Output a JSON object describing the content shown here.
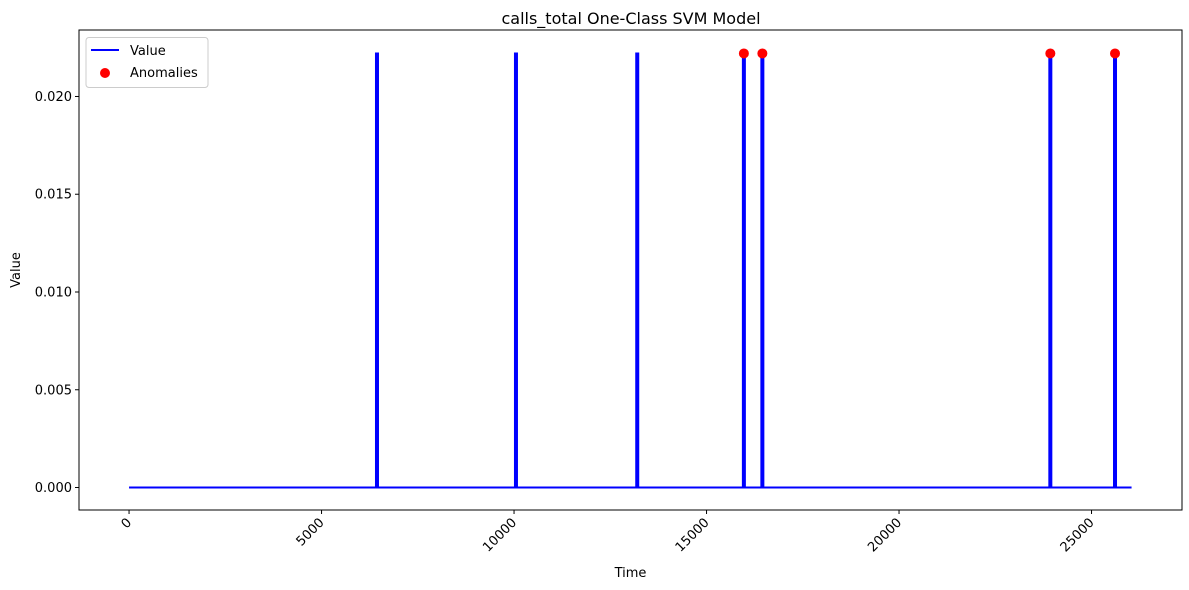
{
  "chart_data": {
    "type": "line",
    "title": "calls_total One-Class SVM Model",
    "xlabel": "Time",
    "ylabel": "Value",
    "xlim": [
      -1300,
      27350
    ],
    "ylim": [
      -0.00115,
      0.0234
    ],
    "xticks": [
      0,
      5000,
      10000,
      15000,
      20000,
      25000
    ],
    "xtick_labels": [
      "0",
      "5000",
      "10000",
      "15000",
      "20000",
      "25000"
    ],
    "xtick_rotation": 45,
    "yticks": [
      0.0,
      0.005,
      0.01,
      0.015,
      0.02
    ],
    "ytick_labels": [
      "0.000",
      "0.005",
      "0.010",
      "0.015",
      "0.020"
    ],
    "grid": false,
    "legend_position": "upper-left",
    "series": [
      {
        "name": "Value",
        "kind": "line",
        "color": "#0000ff",
        "x_range": [
          0,
          26040
        ],
        "baseline": 0.0,
        "spike_value": 0.0222,
        "spikes_x": [
          6440,
          10050,
          13200,
          15970,
          16450,
          23930,
          25610
        ]
      },
      {
        "name": "Anomalies",
        "kind": "scatter",
        "color": "#ff0000",
        "points": [
          {
            "x": 15970,
            "y": 0.0222
          },
          {
            "x": 16450,
            "y": 0.0222
          },
          {
            "x": 23930,
            "y": 0.0222
          },
          {
            "x": 25610,
            "y": 0.0222
          }
        ]
      }
    ]
  }
}
